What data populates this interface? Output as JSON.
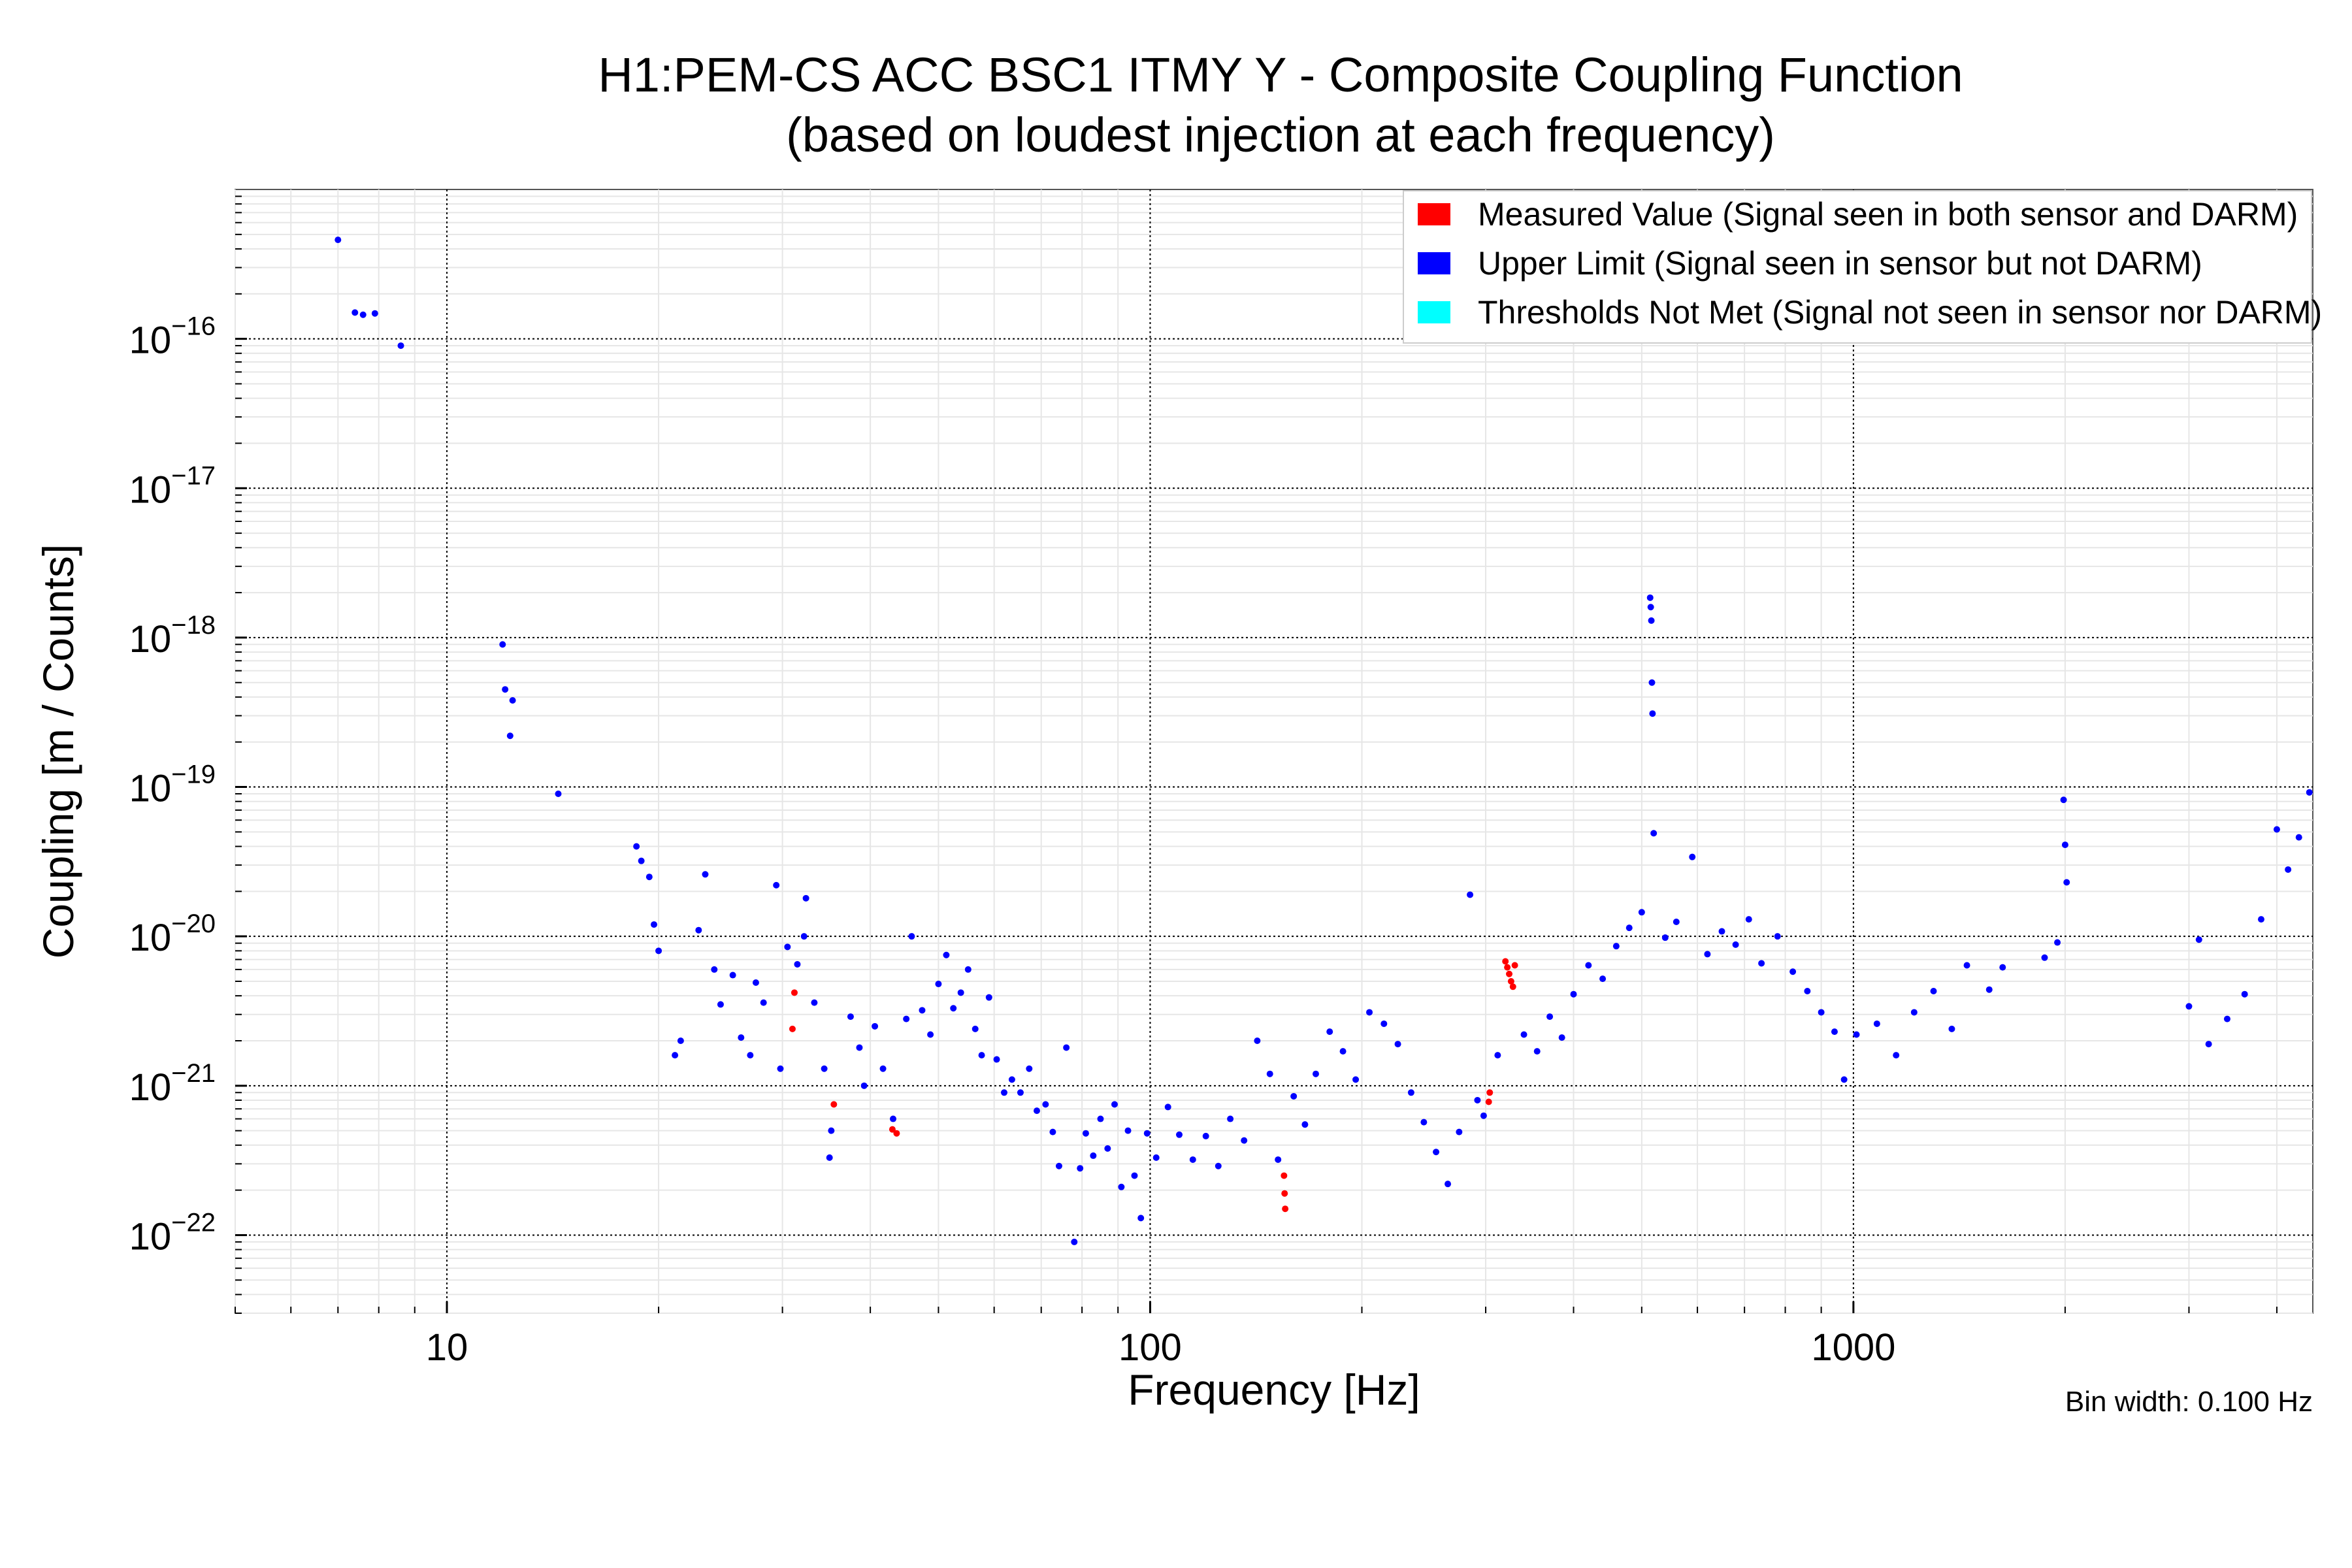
{
  "chart_data": {
    "type": "scatter",
    "title": "H1:PEM-CS ACC BSC1 ITMY Y - Composite Coupling Function",
    "subtitle": "(based on loudest injection at each frequency)",
    "xlabel": "Frequency [Hz]",
    "ylabel": "Coupling [m / Counts]",
    "x_scale": "log",
    "y_scale": "log",
    "xlim": [
      5.0,
      4500
    ],
    "ylim": [
      3e-23,
      1e-15
    ],
    "x_ticks": [
      {
        "value": 10,
        "label": "10"
      },
      {
        "value": 100,
        "label": "100"
      },
      {
        "value": 1000,
        "label": "1000"
      }
    ],
    "y_ticks": [
      {
        "value": 1e-16,
        "base": "10",
        "exp": "−16"
      },
      {
        "value": 1e-17,
        "base": "10",
        "exp": "−17"
      },
      {
        "value": 1e-18,
        "base": "10",
        "exp": "−18"
      },
      {
        "value": 1e-19,
        "base": "10",
        "exp": "−19"
      },
      {
        "value": 1e-20,
        "base": "10",
        "exp": "−20"
      },
      {
        "value": 1e-21,
        "base": "10",
        "exp": "−21"
      },
      {
        "value": 1e-22,
        "base": "10",
        "exp": "−22"
      }
    ],
    "grid": true,
    "legend_position": "top-right",
    "note": "Bin width: 0.100 Hz",
    "series": [
      {
        "name": "Measured Value (Signal seen in both sensor and DARM)",
        "color": "#ff0000",
        "points": [
          [
            31.2,
            4.2e-21
          ],
          [
            31.0,
            2.4e-21
          ],
          [
            35.5,
            7.5e-22
          ],
          [
            43.0,
            5.1e-22
          ],
          [
            43.6,
            4.8e-22
          ],
          [
            155,
            2.5e-22
          ],
          [
            155.3,
            1.9e-22
          ],
          [
            155.6,
            1.5e-22
          ],
          [
            303,
            7.8e-22
          ],
          [
            304,
            9e-22
          ],
          [
            320,
            6.8e-21
          ],
          [
            322,
            6.2e-21
          ],
          [
            324,
            5.6e-21
          ],
          [
            326,
            5e-21
          ],
          [
            328,
            4.6e-21
          ],
          [
            330,
            6.4e-21
          ]
        ]
      },
      {
        "name": "Upper Limit (Signal seen in sensor but not DARM)",
        "color": "#0000ff",
        "points": [
          [
            7.0,
            4.6e-16
          ],
          [
            7.4,
            1.5e-16
          ],
          [
            7.6,
            1.45e-16
          ],
          [
            7.9,
            1.48e-16
          ],
          [
            8.6,
            9e-17
          ],
          [
            12.0,
            9e-19
          ],
          [
            12.1,
            4.5e-19
          ],
          [
            12.4,
            3.8e-19
          ],
          [
            12.3,
            2.2e-19
          ],
          [
            14.4,
            9e-20
          ],
          [
            18.6,
            4e-20
          ],
          [
            18.9,
            3.2e-20
          ],
          [
            19.4,
            2.5e-20
          ],
          [
            19.7,
            1.2e-20
          ],
          [
            20.0,
            8e-21
          ],
          [
            21.1,
            1.6e-21
          ],
          [
            21.5,
            2e-21
          ],
          [
            22.8,
            1.1e-20
          ],
          [
            23.3,
            2.6e-20
          ],
          [
            24.0,
            6e-21
          ],
          [
            24.5,
            3.5e-21
          ],
          [
            25.5,
            5.5e-21
          ],
          [
            26.2,
            2.1e-21
          ],
          [
            27.0,
            1.6e-21
          ],
          [
            27.5,
            4.9e-21
          ],
          [
            28.2,
            3.6e-21
          ],
          [
            29.4,
            2.2e-20
          ],
          [
            29.8,
            1.3e-21
          ],
          [
            30.5,
            8.5e-21
          ],
          [
            31.5,
            6.5e-21
          ],
          [
            32.2,
            1e-20
          ],
          [
            32.4,
            1.8e-20
          ],
          [
            33.3,
            3.6e-21
          ],
          [
            34.4,
            1.3e-21
          ],
          [
            35.0,
            3.3e-22
          ],
          [
            35.2,
            5e-22
          ],
          [
            37.5,
            2.9e-21
          ],
          [
            38.6,
            1.8e-21
          ],
          [
            39.2,
            1e-21
          ],
          [
            40.6,
            2.5e-21
          ],
          [
            41.7,
            1.3e-21
          ],
          [
            43.1,
            6e-22
          ],
          [
            45.0,
            2.8e-21
          ],
          [
            45.8,
            1e-20
          ],
          [
            47.4,
            3.2e-21
          ],
          [
            48.7,
            2.2e-21
          ],
          [
            50.0,
            4.8e-21
          ],
          [
            51.3,
            7.5e-21
          ],
          [
            52.5,
            3.3e-21
          ],
          [
            53.8,
            4.2e-21
          ],
          [
            55.1,
            6e-21
          ],
          [
            56.4,
            2.4e-21
          ],
          [
            57.6,
            1.6e-21
          ],
          [
            59.0,
            3.9e-21
          ],
          [
            60.5,
            1.5e-21
          ],
          [
            62.0,
            9e-22
          ],
          [
            63.6,
            1.1e-21
          ],
          [
            65.4,
            9e-22
          ],
          [
            67.3,
            1.3e-21
          ],
          [
            69.0,
            6.8e-22
          ],
          [
            71.0,
            7.5e-22
          ],
          [
            72.7,
            4.9e-22
          ],
          [
            74.2,
            2.9e-22
          ],
          [
            76.0,
            1.8e-21
          ],
          [
            78.0,
            9e-23
          ],
          [
            79.5,
            2.8e-22
          ],
          [
            81.0,
            4.8e-22
          ],
          [
            83.0,
            3.4e-22
          ],
          [
            85.0,
            6e-22
          ],
          [
            87.0,
            3.8e-22
          ],
          [
            89.0,
            7.5e-22
          ],
          [
            91.0,
            2.1e-22
          ],
          [
            93.0,
            5e-22
          ],
          [
            95.0,
            2.5e-22
          ],
          [
            97.0,
            1.3e-22
          ],
          [
            99.0,
            4.8e-22
          ],
          [
            102,
            3.3e-22
          ],
          [
            106,
            7.2e-22
          ],
          [
            110,
            4.7e-22
          ],
          [
            115,
            3.2e-22
          ],
          [
            120,
            4.6e-22
          ],
          [
            125,
            2.9e-22
          ],
          [
            130,
            6e-22
          ],
          [
            136,
            4.3e-22
          ],
          [
            142,
            2e-21
          ],
          [
            148,
            1.2e-21
          ],
          [
            152,
            3.2e-22
          ],
          [
            160,
            8.5e-22
          ],
          [
            166,
            5.5e-22
          ],
          [
            172,
            1.2e-21
          ],
          [
            180,
            2.3e-21
          ],
          [
            188,
            1.7e-21
          ],
          [
            196,
            1.1e-21
          ],
          [
            205,
            3.1e-21
          ],
          [
            215,
            2.6e-21
          ],
          [
            225,
            1.9e-21
          ],
          [
            235,
            9e-22
          ],
          [
            245,
            5.7e-22
          ],
          [
            255,
            3.6e-22
          ],
          [
            265,
            2.2e-22
          ],
          [
            275,
            4.9e-22
          ],
          [
            285,
            1.9e-20
          ],
          [
            292,
            8e-22
          ],
          [
            298,
            6.3e-22
          ],
          [
            312,
            1.6e-21
          ],
          [
            340,
            2.2e-21
          ],
          [
            355,
            1.7e-21
          ],
          [
            370,
            2.9e-21
          ],
          [
            385,
            2.1e-21
          ],
          [
            400,
            4.1e-21
          ],
          [
            420,
            6.4e-21
          ],
          [
            440,
            5.2e-21
          ],
          [
            460,
            8.6e-21
          ],
          [
            480,
            1.14e-20
          ],
          [
            500,
            1.45e-20
          ],
          [
            514,
            1.85e-18
          ],
          [
            515,
            1.6e-18
          ],
          [
            516,
            1.3e-18
          ],
          [
            517,
            5e-19
          ],
          [
            518,
            3.1e-19
          ],
          [
            520,
            4.9e-20
          ],
          [
            540,
            9.8e-21
          ],
          [
            560,
            1.25e-20
          ],
          [
            590,
            3.4e-20
          ],
          [
            620,
            7.6e-21
          ],
          [
            650,
            1.08e-20
          ],
          [
            680,
            8.8e-21
          ],
          [
            710,
            1.3e-20
          ],
          [
            740,
            6.6e-21
          ],
          [
            780,
            1e-20
          ],
          [
            820,
            5.8e-21
          ],
          [
            860,
            4.3e-21
          ],
          [
            900,
            3.1e-21
          ],
          [
            940,
            2.3e-21
          ],
          [
            970,
            1.1e-21
          ],
          [
            1010,
            2.2e-21
          ],
          [
            1080,
            2.6e-21
          ],
          [
            1150,
            1.6e-21
          ],
          [
            1220,
            3.1e-21
          ],
          [
            1300,
            4.3e-21
          ],
          [
            1380,
            2.4e-21
          ],
          [
            1450,
            6.4e-21
          ],
          [
            1560,
            4.4e-21
          ],
          [
            1630,
            6.2e-21
          ],
          [
            1870,
            7.2e-21
          ],
          [
            1950,
            9.1e-21
          ],
          [
            1990,
            8.2e-20
          ],
          [
            2000,
            4.1e-20
          ],
          [
            2010,
            2.3e-20
          ],
          [
            3000,
            3.4e-21
          ],
          [
            3100,
            9.5e-21
          ],
          [
            3200,
            1.9e-21
          ],
          [
            3400,
            2.8e-21
          ],
          [
            3600,
            4.1e-21
          ],
          [
            3800,
            1.3e-20
          ],
          [
            4000,
            5.2e-20
          ],
          [
            4150,
            2.8e-20
          ],
          [
            4300,
            4.6e-20
          ],
          [
            4450,
            9.2e-20
          ]
        ]
      },
      {
        "name": "Thresholds Not Met (Signal not seen in sensor nor DARM)",
        "color": "#00ffff",
        "points": []
      }
    ]
  }
}
